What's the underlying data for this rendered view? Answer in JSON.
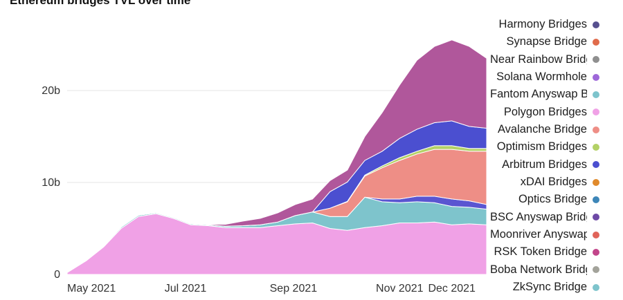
{
  "chart_data": {
    "type": "area",
    "title": "Ethereum bridges TVL over time",
    "stacked": true,
    "x": [
      "2021-04-24",
      "2021-05-05",
      "2021-05-15",
      "2021-05-25",
      "2021-06-04",
      "2021-06-14",
      "2021-06-24",
      "2021-07-04",
      "2021-07-14",
      "2021-07-24",
      "2021-08-03",
      "2021-08-13",
      "2021-08-23",
      "2021-09-02",
      "2021-09-12",
      "2021-09-22",
      "2021-10-02",
      "2021-10-12",
      "2021-10-22",
      "2021-11-01",
      "2021-11-11",
      "2021-11-21",
      "2021-12-01",
      "2021-12-11",
      "2021-12-21"
    ],
    "x_ticks": [
      "May 2021",
      "Jul 2021",
      "Sep 2021",
      "Nov 2021",
      "Dec 2021"
    ],
    "y_ticks": [
      "0",
      "10b",
      "20b"
    ],
    "ylim": [
      0,
      27
    ],
    "grid": true,
    "legend_position": "right",
    "series": [
      {
        "name": "Polygon Bridges",
        "color": "#f0a1e6",
        "values": [
          0.2,
          1.5,
          3.0,
          5.0,
          6.3,
          6.6,
          6.1,
          5.4,
          5.3,
          5.1,
          5.1,
          5.1,
          5.3,
          5.5,
          5.6,
          5.0,
          4.8,
          5.1,
          5.3,
          5.6,
          5.6,
          5.7,
          5.4,
          5.5,
          5.4
        ]
      },
      {
        "name": "Fantom Anyswap Bridge",
        "color": "#7ec4cc",
        "values": [
          0.05,
          0.05,
          0.1,
          0.15,
          0.15,
          0.1,
          0.1,
          0.1,
          0.1,
          0.15,
          0.2,
          0.3,
          0.4,
          0.9,
          1.2,
          1.3,
          1.5,
          3.3,
          2.6,
          2.2,
          2.3,
          2.1,
          2.0,
          1.8,
          1.7
        ]
      },
      {
        "name": "Arbitrum Bridges",
        "color": "#5a55d1",
        "values": [
          0,
          0,
          0,
          0,
          0,
          0,
          0,
          0,
          0,
          0,
          0,
          0,
          0,
          0,
          0,
          0,
          0,
          0,
          0.3,
          0.4,
          0.6,
          0.7,
          0.8,
          0.7,
          0.5
        ]
      },
      {
        "name": "Avalanche Bridge",
        "color": "#ee8e86",
        "values": [
          0,
          0,
          0,
          0,
          0,
          0,
          0,
          0,
          0,
          0,
          0,
          0,
          0,
          0,
          0,
          0.9,
          1.6,
          2.3,
          3.4,
          4.2,
          4.6,
          5.1,
          5.4,
          5.4,
          5.8
        ]
      },
      {
        "name": "Optimism Bridges",
        "color": "#b3d166",
        "values": [
          0,
          0,
          0,
          0,
          0,
          0,
          0,
          0,
          0,
          0,
          0,
          0,
          0,
          0,
          0,
          0,
          0.05,
          0.1,
          0.2,
          0.3,
          0.3,
          0.4,
          0.4,
          0.3,
          0.3
        ]
      },
      {
        "name": "Solana Wormhole",
        "color": "#4b4fd0",
        "values": [
          0,
          0,
          0,
          0,
          0,
          0,
          0,
          0,
          0,
          0,
          0,
          0,
          0,
          0,
          0,
          1.8,
          2.1,
          1.6,
          1.6,
          2.1,
          2.4,
          2.5,
          2.7,
          2.4,
          2.2
        ]
      },
      {
        "name": "Harmony Bridges",
        "color": "#b0579b",
        "values": [
          0,
          0,
          0,
          0,
          0,
          0,
          0,
          0,
          0.05,
          0.2,
          0.5,
          0.7,
          1.0,
          1.2,
          1.4,
          1.2,
          1.3,
          2.6,
          4.2,
          5.8,
          7.5,
          8.3,
          8.8,
          8.7,
          7.6
        ]
      }
    ],
    "legend": [
      {
        "name": "Harmony Bridges",
        "color": "#57508f"
      },
      {
        "name": "Synapse Bridge",
        "color": "#e06b4b"
      },
      {
        "name": "Near Rainbow Bridge",
        "color": "#8f8f8f"
      },
      {
        "name": "Solana Wormhole",
        "color": "#9e68d9"
      },
      {
        "name": "Fantom Anyswap Bridge",
        "color": "#7ec4cc"
      },
      {
        "name": "Polygon Bridges",
        "color": "#f0a1e6"
      },
      {
        "name": "Avalanche Bridge",
        "color": "#ee8e86"
      },
      {
        "name": "Optimism Bridges",
        "color": "#b3d166"
      },
      {
        "name": "Arbitrum Bridges",
        "color": "#4b4fd0"
      },
      {
        "name": "xDAI Bridges",
        "color": "#e08a2c"
      },
      {
        "name": "Optics Bridge",
        "color": "#3d86b8"
      },
      {
        "name": "BSC Anyswap Bridge",
        "color": "#6e4aa6"
      },
      {
        "name": "Moonriver Anyswap Bridge",
        "color": "#e0645a"
      },
      {
        "name": "RSK Token Bridge",
        "color": "#c2458a"
      },
      {
        "name": "Boba Network Bridge",
        "color": "#a3a39a"
      },
      {
        "name": "ZkSync Bridge",
        "color": "#7ec4cc"
      }
    ]
  }
}
